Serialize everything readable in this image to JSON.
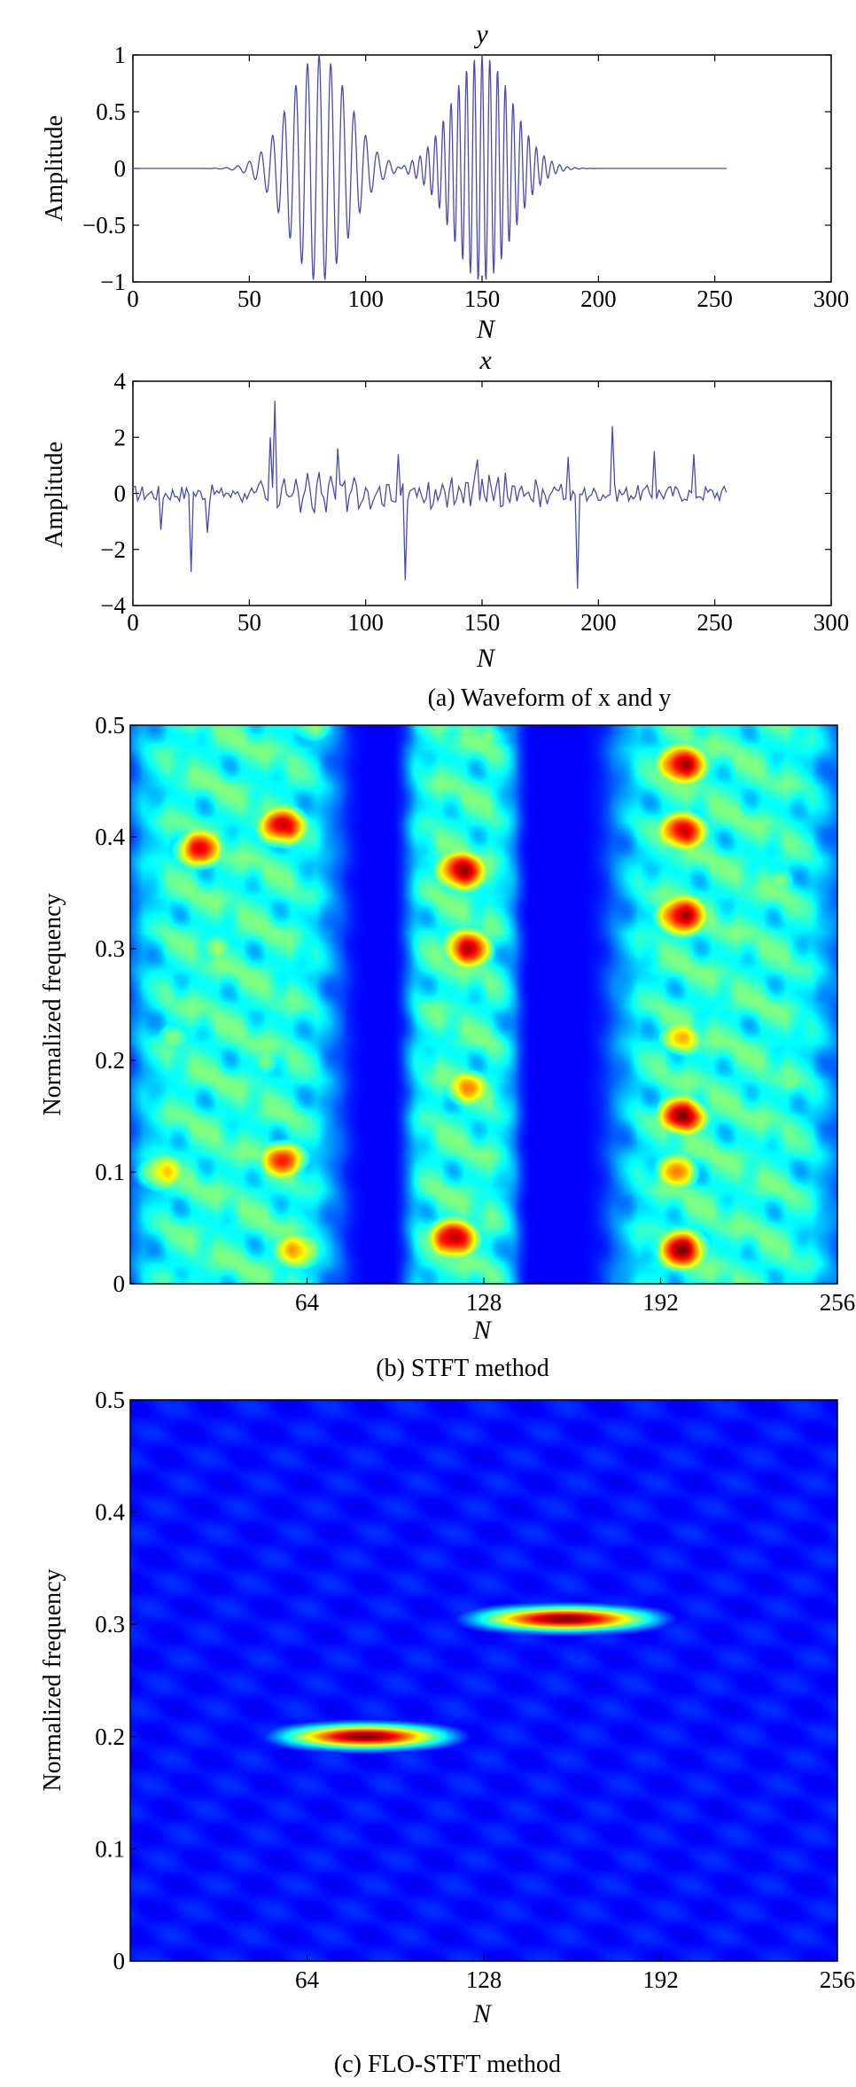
{
  "figure": {
    "caption_a": "(a) Waveform of x and y",
    "caption_b": "(b) STFT method",
    "caption_c": "(c) FLO-STFT method"
  },
  "colors": {
    "line": "#4a4ab3",
    "jet": [
      "#00008f",
      "#0000ff",
      "#00ffff",
      "#ffff00",
      "#ff0000",
      "#800000"
    ]
  },
  "chart_data": [
    {
      "id": "y-waveform",
      "type": "line",
      "title": "y",
      "xlabel": "N",
      "ylabel": "Amplitude",
      "xlim": [
        0,
        300
      ],
      "ylim": [
        -1,
        1
      ],
      "xticks": [
        0,
        50,
        100,
        150,
        200,
        250,
        300
      ],
      "yticks": [
        -1,
        -0.5,
        0,
        0.5,
        1
      ],
      "ytick_labels": [
        "−1",
        "−0.5",
        "0",
        "0.5",
        "1"
      ],
      "signal_range": [
        0,
        255
      ],
      "components": [
        {
          "center": 80,
          "width": 18,
          "amplitude": 1.0,
          "normalized_frequency": 0.2
        },
        {
          "center": 150,
          "width": 18,
          "amplitude": 1.0,
          "normalized_frequency": 0.3
        }
      ]
    },
    {
      "id": "x-waveform",
      "type": "line",
      "title": "x",
      "xlabel": "N",
      "ylabel": "Amplitude",
      "xlim": [
        0,
        300
      ],
      "ylim": [
        -4,
        4
      ],
      "xticks": [
        0,
        50,
        100,
        150,
        200,
        250,
        300
      ],
      "yticks": [
        -4,
        -2,
        0,
        2,
        4
      ],
      "ytick_labels": [
        "−4",
        "−2",
        "0",
        "2",
        "4"
      ],
      "signal_range": [
        0,
        255
      ],
      "impulses": [
        {
          "n": 12,
          "value": -1.3
        },
        {
          "n": 25,
          "value": -2.8
        },
        {
          "n": 32,
          "value": -1.4
        },
        {
          "n": 59,
          "value": 2.0
        },
        {
          "n": 61,
          "value": 3.3
        },
        {
          "n": 88,
          "value": 1.6
        },
        {
          "n": 114,
          "value": 1.4
        },
        {
          "n": 117,
          "value": -3.1
        },
        {
          "n": 148,
          "value": 1.2
        },
        {
          "n": 187,
          "value": 1.3
        },
        {
          "n": 191,
          "value": -3.4
        },
        {
          "n": 206,
          "value": 2.4
        },
        {
          "n": 224,
          "value": 1.5
        },
        {
          "n": 241,
          "value": 1.4
        }
      ]
    },
    {
      "id": "stft-heatmap",
      "type": "heatmap",
      "title": "",
      "xlabel": "N",
      "ylabel": "Normalized frequency",
      "xlim": [
        0,
        256
      ],
      "ylim": [
        0,
        0.5
      ],
      "xticks": [
        64,
        128,
        192,
        256
      ],
      "yticks": [
        0,
        0.1,
        0.2,
        0.3,
        0.4,
        0.5
      ],
      "colormap": "jet",
      "band_columns": [
        {
          "from": 0,
          "to": 75
        },
        {
          "from": 100,
          "to": 140
        },
        {
          "from": 175,
          "to": 256
        }
      ],
      "peaks": [
        {
          "n": 25,
          "f": 0.39,
          "value": 0.9
        },
        {
          "n": 55,
          "f": 0.41,
          "value": 0.95
        },
        {
          "n": 120,
          "f": 0.37,
          "value": 1.0
        },
        {
          "n": 122,
          "f": 0.3,
          "value": 0.95
        },
        {
          "n": 122,
          "f": 0.175,
          "value": 0.75
        },
        {
          "n": 117,
          "f": 0.04,
          "value": 1.0
        },
        {
          "n": 200,
          "f": 0.465,
          "value": 1.0
        },
        {
          "n": 200,
          "f": 0.405,
          "value": 0.95
        },
        {
          "n": 200,
          "f": 0.33,
          "value": 1.0
        },
        {
          "n": 200,
          "f": 0.15,
          "value": 1.0
        },
        {
          "n": 200,
          "f": 0.03,
          "value": 1.0
        },
        {
          "n": 200,
          "f": 0.22,
          "value": 0.7
        },
        {
          "n": 198,
          "f": 0.1,
          "value": 0.75
        },
        {
          "n": 55,
          "f": 0.11,
          "value": 0.85
        },
        {
          "n": 60,
          "f": 0.03,
          "value": 0.75
        },
        {
          "n": 12,
          "f": 0.1,
          "value": 0.7
        },
        {
          "n": 15,
          "f": 0.22,
          "value": 0.5
        },
        {
          "n": 30,
          "f": 0.3,
          "value": 0.55
        },
        {
          "n": 50,
          "f": 0.2,
          "value": 0.5
        },
        {
          "n": 65,
          "f": 0.5,
          "value": 0.55
        },
        {
          "n": 130,
          "f": 0.49,
          "value": 0.5
        },
        {
          "n": 235,
          "f": 0.36,
          "value": 0.5
        },
        {
          "n": 240,
          "f": 0.18,
          "value": 0.5
        },
        {
          "n": 235,
          "f": 0.09,
          "value": 0.45
        }
      ]
    },
    {
      "id": "flo-stft-heatmap",
      "type": "heatmap",
      "title": "",
      "xlabel": "N",
      "ylabel": "Normalized frequency",
      "xlim": [
        0,
        256
      ],
      "ylim": [
        0,
        0.5
      ],
      "xticks": [
        64,
        128,
        192,
        256
      ],
      "yticks": [
        0,
        0.1,
        0.2,
        0.3,
        0.4,
        0.5
      ],
      "colormap": "jet",
      "background": 0.14,
      "ridges": [
        {
          "n_from": 50,
          "n_to": 120,
          "f": 0.2,
          "value": 1.0
        },
        {
          "n_from": 120,
          "n_to": 195,
          "f": 0.305,
          "value": 1.0
        }
      ]
    }
  ]
}
